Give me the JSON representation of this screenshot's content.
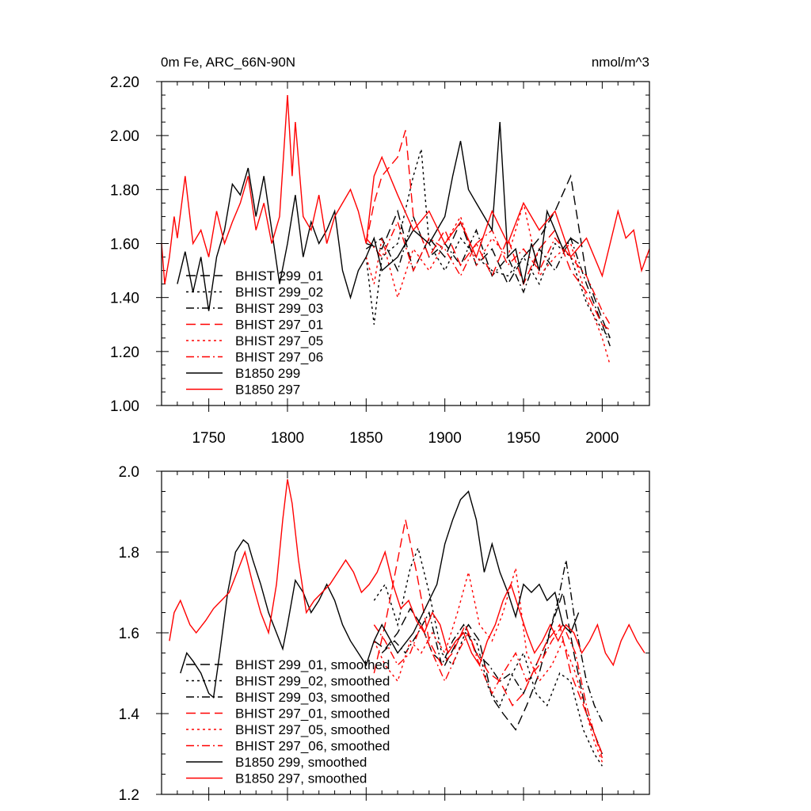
{
  "chart_data": [
    {
      "type": "line",
      "title": "0m Fe, ARC_66N-90N",
      "units": "nmol/m^3",
      "xlim": [
        1720,
        2030
      ],
      "ylim": [
        1.0,
        2.2
      ],
      "x_ticks": [
        1750,
        1800,
        1850,
        1900,
        1950,
        2000
      ],
      "y_ticks": [
        "1.00",
        "1.20",
        "1.40",
        "1.60",
        "1.80",
        "2.00",
        "2.20"
      ],
      "legend_position": "lower-left",
      "series": [
        {
          "name": "BHIST 299_01",
          "color": "#000000",
          "dash": "long-dash",
          "x": [
            1850,
            1860,
            1870,
            1880,
            1890,
            1900,
            1910,
            1920,
            1930,
            1940,
            1950,
            1960,
            1970,
            1980,
            1990,
            2000,
            2005
          ],
          "y": [
            1.6,
            1.58,
            1.72,
            1.5,
            1.62,
            1.55,
            1.68,
            1.52,
            1.58,
            1.45,
            1.55,
            1.62,
            1.72,
            1.85,
            1.48,
            1.32,
            1.25
          ]
        },
        {
          "name": "BHIST 299_02",
          "color": "#000000",
          "dash": "dot",
          "x": [
            1850,
            1855,
            1860,
            1870,
            1880,
            1885,
            1890,
            1900,
            1910,
            1920,
            1930,
            1940,
            1950,
            1960,
            1970,
            1980,
            1990,
            2000,
            2005
          ],
          "y": [
            1.55,
            1.3,
            1.55,
            1.6,
            1.85,
            1.95,
            1.6,
            1.5,
            1.62,
            1.55,
            1.5,
            1.48,
            1.55,
            1.45,
            1.6,
            1.55,
            1.38,
            1.28,
            1.25
          ]
        },
        {
          "name": "BHIST 299_03",
          "color": "#000000",
          "dash": "dash-dot",
          "x": [
            1850,
            1860,
            1870,
            1880,
            1890,
            1900,
            1910,
            1920,
            1930,
            1940,
            1950,
            1960,
            1970,
            1980,
            1990,
            2000,
            2005
          ],
          "y": [
            1.58,
            1.62,
            1.5,
            1.7,
            1.55,
            1.6,
            1.52,
            1.65,
            1.48,
            1.55,
            1.42,
            1.58,
            1.5,
            1.62,
            1.45,
            1.3,
            1.22
          ]
        },
        {
          "name": "BHIST 297_01",
          "color": "#ff0000",
          "dash": "long-dash",
          "x": [
            1850,
            1855,
            1860,
            1870,
            1875,
            1880,
            1890,
            1900,
            1910,
            1920,
            1930,
            1940,
            1950,
            1960,
            1970,
            1980,
            1990,
            2000,
            2005
          ],
          "y": [
            1.6,
            1.75,
            1.85,
            1.92,
            2.02,
            1.7,
            1.55,
            1.65,
            1.52,
            1.6,
            1.48,
            1.62,
            1.45,
            1.58,
            1.65,
            1.5,
            1.42,
            1.3,
            1.28
          ]
        },
        {
          "name": "BHIST 297_05",
          "color": "#ff0000",
          "dash": "dot",
          "x": [
            1850,
            1855,
            1860,
            1870,
            1880,
            1890,
            1900,
            1910,
            1920,
            1930,
            1940,
            1950,
            1960,
            1970,
            1980,
            1990,
            2000,
            2005
          ],
          "y": [
            1.55,
            1.45,
            1.62,
            1.4,
            1.58,
            1.5,
            1.6,
            1.7,
            1.52,
            1.62,
            1.55,
            1.75,
            1.48,
            1.55,
            1.6,
            1.4,
            1.25,
            1.15
          ]
        },
        {
          "name": "BHIST 297_06",
          "color": "#ff0000",
          "dash": "dash-dot",
          "x": [
            1850,
            1860,
            1870,
            1880,
            1890,
            1900,
            1910,
            1920,
            1930,
            1940,
            1950,
            1960,
            1970,
            1980,
            1990,
            2000,
            2005
          ],
          "y": [
            1.62,
            1.55,
            1.68,
            1.5,
            1.62,
            1.58,
            1.48,
            1.6,
            1.65,
            1.52,
            1.58,
            1.5,
            1.62,
            1.55,
            1.48,
            1.35,
            1.3
          ]
        },
        {
          "name": "B1850 299",
          "color": "#000000",
          "dash": "solid",
          "x": [
            1730,
            1735,
            1740,
            1745,
            1750,
            1755,
            1760,
            1765,
            1770,
            1775,
            1780,
            1785,
            1790,
            1795,
            1800,
            1805,
            1810,
            1815,
            1820,
            1825,
            1830,
            1835,
            1840,
            1845,
            1850,
            1855,
            1860,
            1870,
            1880,
            1890,
            1900,
            1905,
            1910,
            1915,
            1920,
            1925,
            1930,
            1935,
            1940,
            1945,
            1950,
            1955,
            1960,
            1965,
            1970,
            1975,
            1980,
            1985
          ],
          "y": [
            1.45,
            1.57,
            1.42,
            1.55,
            1.35,
            1.55,
            1.65,
            1.82,
            1.78,
            1.88,
            1.7,
            1.85,
            1.65,
            1.45,
            1.6,
            1.78,
            1.55,
            1.68,
            1.6,
            1.65,
            1.72,
            1.5,
            1.4,
            1.5,
            1.55,
            1.62,
            1.5,
            1.55,
            1.65,
            1.6,
            1.7,
            1.85,
            1.98,
            1.8,
            1.75,
            1.7,
            1.65,
            2.05,
            1.55,
            1.58,
            1.45,
            1.6,
            1.5,
            1.72,
            1.65,
            1.58,
            1.62,
            1.6
          ]
        },
        {
          "name": "B1850 297",
          "color": "#ff0000",
          "dash": "solid",
          "x": [
            1720,
            1722,
            1725,
            1728,
            1730,
            1735,
            1740,
            1745,
            1750,
            1755,
            1760,
            1765,
            1770,
            1775,
            1780,
            1785,
            1790,
            1795,
            1800,
            1803,
            1805,
            1810,
            1815,
            1820,
            1825,
            1830,
            1835,
            1840,
            1845,
            1850,
            1855,
            1860,
            1870,
            1880,
            1890,
            1900,
            1910,
            1920,
            1930,
            1940,
            1950,
            1960,
            1970,
            1980,
            1990,
            2000,
            2010,
            2015,
            2020,
            2025,
            2030
          ],
          "y": [
            1.6,
            1.45,
            1.55,
            1.7,
            1.62,
            1.85,
            1.6,
            1.65,
            1.55,
            1.72,
            1.6,
            1.68,
            1.75,
            1.85,
            1.65,
            1.75,
            1.6,
            1.7,
            2.15,
            1.85,
            2.05,
            1.7,
            1.65,
            1.78,
            1.6,
            1.7,
            1.75,
            1.8,
            1.72,
            1.6,
            1.85,
            1.92,
            1.78,
            1.65,
            1.72,
            1.6,
            1.68,
            1.55,
            1.72,
            1.6,
            1.75,
            1.65,
            1.72,
            1.55,
            1.62,
            1.48,
            1.72,
            1.62,
            1.65,
            1.5,
            1.58
          ]
        }
      ]
    },
    {
      "type": "line",
      "xlim": [
        1720,
        2030
      ],
      "ylim": [
        1.2,
        2.0
      ],
      "y_ticks": [
        "1.2",
        "1.4",
        "1.6",
        "1.8",
        "2.0"
      ],
      "legend_position": "lower-left",
      "series": [
        {
          "name": "BHIST 299_01, smoothed",
          "color": "#000000",
          "dash": "long-dash",
          "x": [
            1855,
            1862,
            1870,
            1878,
            1885,
            1892,
            1900,
            1908,
            1915,
            1922,
            1930,
            1937,
            1945,
            1952,
            1960,
            1968,
            1975,
            1982,
            1990,
            1995,
            2000
          ],
          "y": [
            1.58,
            1.56,
            1.6,
            1.66,
            1.62,
            1.55,
            1.52,
            1.58,
            1.62,
            1.58,
            1.44,
            1.4,
            1.36,
            1.42,
            1.5,
            1.62,
            1.7,
            1.55,
            1.4,
            1.35,
            1.3
          ]
        },
        {
          "name": "BHIST 299_02, smoothed",
          "color": "#000000",
          "dash": "dot",
          "x": [
            1855,
            1862,
            1870,
            1878,
            1883,
            1890,
            1898,
            1905,
            1913,
            1920,
            1928,
            1935,
            1943,
            1950,
            1958,
            1965,
            1973,
            1980,
            1988,
            1995,
            2000
          ],
          "y": [
            1.68,
            1.72,
            1.62,
            1.76,
            1.81,
            1.7,
            1.55,
            1.52,
            1.6,
            1.58,
            1.46,
            1.42,
            1.5,
            1.55,
            1.45,
            1.42,
            1.5,
            1.48,
            1.36,
            1.3,
            1.27
          ]
        },
        {
          "name": "BHIST 299_03, smoothed",
          "color": "#000000",
          "dash": "dash-dot",
          "x": [
            1860,
            1868,
            1875,
            1883,
            1890,
            1898,
            1905,
            1912,
            1920,
            1928,
            1935,
            1942,
            1950,
            1958,
            1965,
            1972,
            1977,
            1983,
            1990,
            1995,
            2000
          ],
          "y": [
            1.55,
            1.58,
            1.55,
            1.6,
            1.65,
            1.52,
            1.58,
            1.62,
            1.55,
            1.52,
            1.48,
            1.5,
            1.45,
            1.52,
            1.58,
            1.68,
            1.78,
            1.62,
            1.48,
            1.42,
            1.38
          ]
        },
        {
          "name": "BHIST 297_01, smoothed",
          "color": "#ff0000",
          "dash": "long-dash",
          "x": [
            1855,
            1862,
            1870,
            1875,
            1882,
            1890,
            1898,
            1905,
            1913,
            1920,
            1928,
            1935,
            1943,
            1950,
            1958,
            1965,
            1973,
            1980,
            1988,
            1995,
            2000
          ],
          "y": [
            1.5,
            1.62,
            1.78,
            1.88,
            1.75,
            1.58,
            1.52,
            1.55,
            1.62,
            1.55,
            1.5,
            1.48,
            1.42,
            1.45,
            1.52,
            1.58,
            1.62,
            1.5,
            1.42,
            1.35,
            1.3
          ]
        },
        {
          "name": "BHIST 297_05, smoothed",
          "color": "#ff0000",
          "dash": "dot",
          "x": [
            1855,
            1862,
            1870,
            1878,
            1885,
            1892,
            1900,
            1908,
            1915,
            1922,
            1930,
            1937,
            1945,
            1952,
            1960,
            1968,
            1975,
            1983,
            1990,
            1995,
            2000
          ],
          "y": [
            1.58,
            1.52,
            1.48,
            1.58,
            1.55,
            1.6,
            1.55,
            1.65,
            1.75,
            1.62,
            1.58,
            1.65,
            1.76,
            1.55,
            1.48,
            1.52,
            1.58,
            1.5,
            1.4,
            1.33,
            1.28
          ]
        },
        {
          "name": "BHIST 297_06, smoothed",
          "color": "#ff0000",
          "dash": "dash-dot",
          "x": [
            1855,
            1862,
            1870,
            1878,
            1885,
            1892,
            1900,
            1908,
            1915,
            1922,
            1930,
            1937,
            1945,
            1952,
            1960,
            1968,
            1975,
            1983,
            1990,
            1995,
            2000
          ],
          "y": [
            1.62,
            1.58,
            1.52,
            1.55,
            1.62,
            1.55,
            1.48,
            1.55,
            1.6,
            1.52,
            1.45,
            1.5,
            1.55,
            1.48,
            1.52,
            1.58,
            1.62,
            1.55,
            1.42,
            1.35,
            1.29
          ]
        },
        {
          "name": "B1850 299, smoothed",
          "color": "#000000",
          "dash": "solid",
          "x": [
            1732,
            1736,
            1740,
            1745,
            1750,
            1753,
            1757,
            1762,
            1767,
            1772,
            1775,
            1778,
            1783,
            1788,
            1793,
            1797,
            1800,
            1805,
            1810,
            1815,
            1820,
            1825,
            1830,
            1835,
            1840,
            1845,
            1850,
            1855,
            1860,
            1870,
            1880,
            1890,
            1895,
            1900,
            1905,
            1910,
            1915,
            1920,
            1925,
            1930,
            1935,
            1940,
            1945,
            1950,
            1955,
            1960,
            1965,
            1970,
            1975,
            1980,
            1985
          ],
          "y": [
            1.5,
            1.55,
            1.53,
            1.5,
            1.45,
            1.44,
            1.55,
            1.7,
            1.8,
            1.83,
            1.82,
            1.78,
            1.72,
            1.65,
            1.6,
            1.56,
            1.62,
            1.73,
            1.7,
            1.65,
            1.68,
            1.72,
            1.68,
            1.62,
            1.58,
            1.55,
            1.52,
            1.58,
            1.62,
            1.55,
            1.6,
            1.68,
            1.72,
            1.82,
            1.88,
            1.93,
            1.95,
            1.88,
            1.75,
            1.82,
            1.75,
            1.7,
            1.64,
            1.72,
            1.7,
            1.72,
            1.68,
            1.7,
            1.62,
            1.6,
            1.65
          ]
        },
        {
          "name": "B1850 297, smoothed",
          "color": "#ff0000",
          "dash": "solid",
          "x": [
            1725,
            1728,
            1732,
            1738,
            1742,
            1748,
            1753,
            1758,
            1763,
            1768,
            1773,
            1778,
            1783,
            1788,
            1793,
            1797,
            1800,
            1803,
            1807,
            1812,
            1817,
            1822,
            1827,
            1832,
            1837,
            1842,
            1847,
            1852,
            1857,
            1862,
            1867,
            1872,
            1877,
            1882,
            1887,
            1892,
            1897,
            1902,
            1907,
            1912,
            1917,
            1922,
            1927,
            1932,
            1937,
            1942,
            1947,
            1952,
            1957,
            1962,
            1967,
            1972,
            1977,
            1982,
            1987,
            1992,
            1997,
            2002,
            2007,
            2012,
            2017,
            2022,
            2027
          ],
          "y": [
            1.58,
            1.65,
            1.68,
            1.62,
            1.6,
            1.63,
            1.66,
            1.68,
            1.7,
            1.75,
            1.8,
            1.72,
            1.65,
            1.6,
            1.72,
            1.88,
            1.98,
            1.92,
            1.78,
            1.65,
            1.68,
            1.7,
            1.72,
            1.75,
            1.78,
            1.75,
            1.7,
            1.72,
            1.75,
            1.8,
            1.72,
            1.66,
            1.68,
            1.63,
            1.6,
            1.65,
            1.62,
            1.55,
            1.58,
            1.6,
            1.55,
            1.52,
            1.58,
            1.62,
            1.68,
            1.72,
            1.66,
            1.6,
            1.55,
            1.58,
            1.62,
            1.58,
            1.62,
            1.6,
            1.55,
            1.58,
            1.62,
            1.55,
            1.52,
            1.58,
            1.62,
            1.58,
            1.55
          ]
        }
      ]
    }
  ]
}
